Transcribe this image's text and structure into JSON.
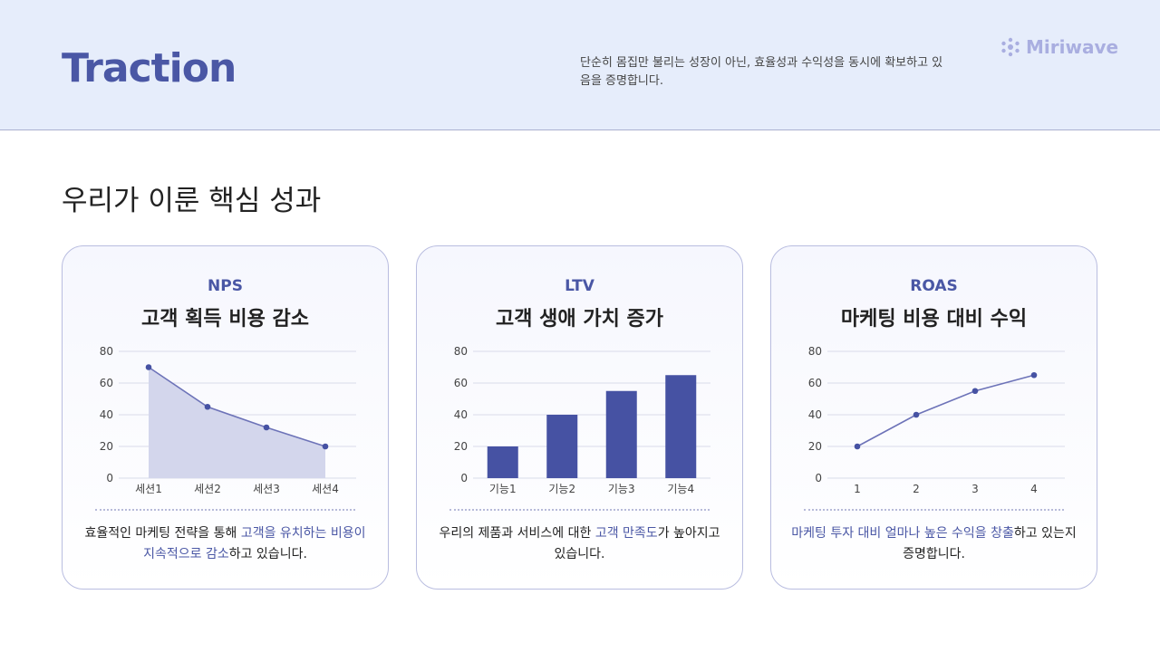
{
  "header": {
    "title": "Traction",
    "subtitle": "단순히 몸집만 불리는 성장이 아닌, 효율성과 수익성을 동시에 확보하고 있음을 증명합니다.",
    "logo_text": "Miriwave",
    "logo_icon": "sparkle-cluster-icon"
  },
  "section_title": "우리가 이룬 핵심 성과",
  "colors": {
    "accent": "#4a57a5",
    "header_bg": "#e6edfb",
    "line": "#6d73b8",
    "area": "#d3d6ec",
    "bar": "#4652a3",
    "logo": "#a9aee0"
  },
  "cards": [
    {
      "tag": "NPS",
      "heading": "고객 획득 비용 감소",
      "desc_pre": "효율적인 마케팅 전략을 통해 ",
      "desc_hl": "고객을 유치하는 비용이 지속적으로 감소",
      "desc_post": "하고 있습니다."
    },
    {
      "tag": "LTV",
      "heading": "고객 생애 가치 증가",
      "desc_pre": "우리의 제품과 서비스에 대한 ",
      "desc_hl": "고객 만족도",
      "desc_post": "가 높아지고 있습니다."
    },
    {
      "tag": "ROAS",
      "heading": "마케팅 비용 대비 수익",
      "desc_pre": "",
      "desc_hl": "마케팅 투자 대비 얼마나 높은 수익을 창출",
      "desc_post": "하고 있는지 증명합니다."
    }
  ],
  "chart_data": [
    {
      "type": "area",
      "categories": [
        "세션1",
        "세션2",
        "세션3",
        "세션4"
      ],
      "values": [
        70,
        45,
        32,
        20
      ],
      "ylim": [
        0,
        80
      ],
      "yticks": [
        "0",
        "20",
        "40",
        "60",
        "80"
      ],
      "grid": true
    },
    {
      "type": "bar",
      "categories": [
        "기능1",
        "기능2",
        "기능3",
        "기능4"
      ],
      "values": [
        20,
        40,
        55,
        65
      ],
      "ylim": [
        0,
        80
      ],
      "yticks": [
        "0",
        "20",
        "40",
        "60",
        "80"
      ],
      "grid": true
    },
    {
      "type": "line",
      "categories": [
        "1",
        "2",
        "3",
        "4"
      ],
      "values": [
        20,
        40,
        55,
        65
      ],
      "ylim": [
        0,
        80
      ],
      "yticks": [
        "0",
        "20",
        "40",
        "60",
        "80"
      ],
      "grid": true
    }
  ]
}
